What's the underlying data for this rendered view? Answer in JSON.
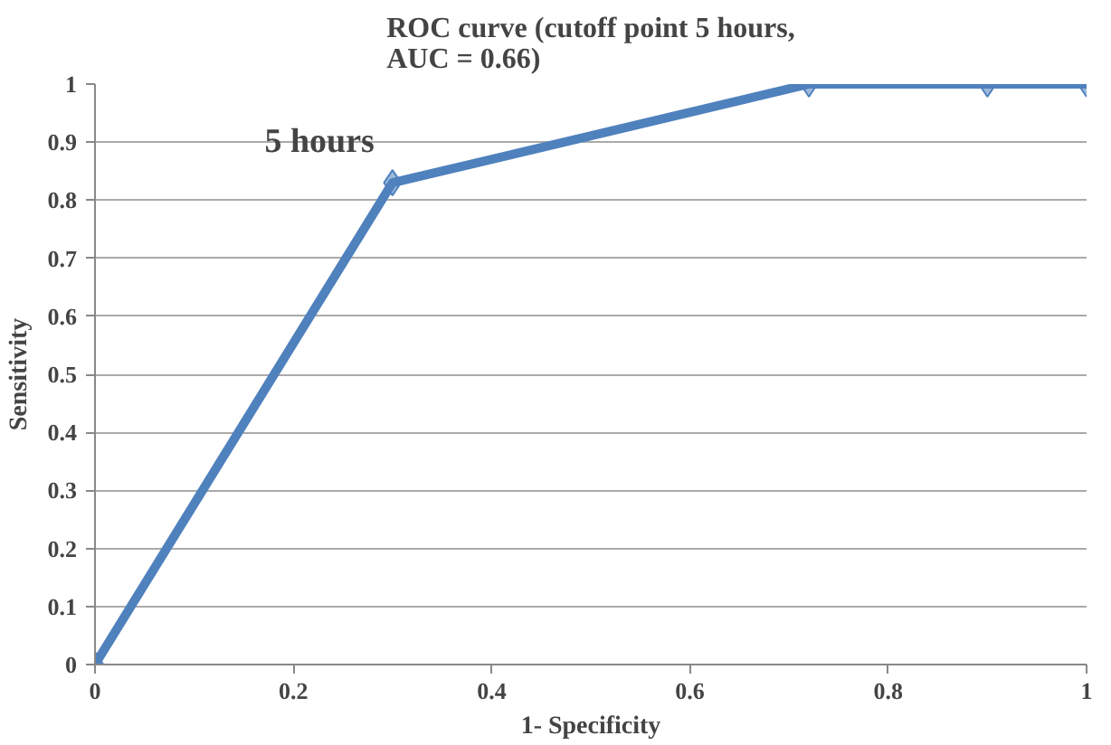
{
  "chart_data": {
    "type": "line",
    "title": "ROC curve (cutoff point 5 hours,\nAUC = 0.66)",
    "xlabel": "1- Specificity",
    "ylabel": "Sensitivity",
    "x": [
      0,
      0.3,
      0.72,
      0.9,
      1
    ],
    "series": [
      {
        "color": "#4f81bd",
        "values": [
          0,
          0.83,
          1,
          1,
          1
        ]
      }
    ],
    "annotations": [
      {
        "text": "5 hours",
        "x": 0.3,
        "y": 0.83
      }
    ],
    "xlim": [
      0,
      1
    ],
    "xticks": [
      0,
      0.2,
      0.4,
      0.6,
      0.8,
      1
    ],
    "ylim": [
      0,
      1
    ],
    "yticks": [
      0,
      0.1,
      0.2,
      0.3,
      0.4,
      0.5,
      0.6,
      0.7,
      0.8,
      0.9,
      1
    ],
    "grid": "y",
    "marker": "diamond",
    "line_style": "solid"
  }
}
